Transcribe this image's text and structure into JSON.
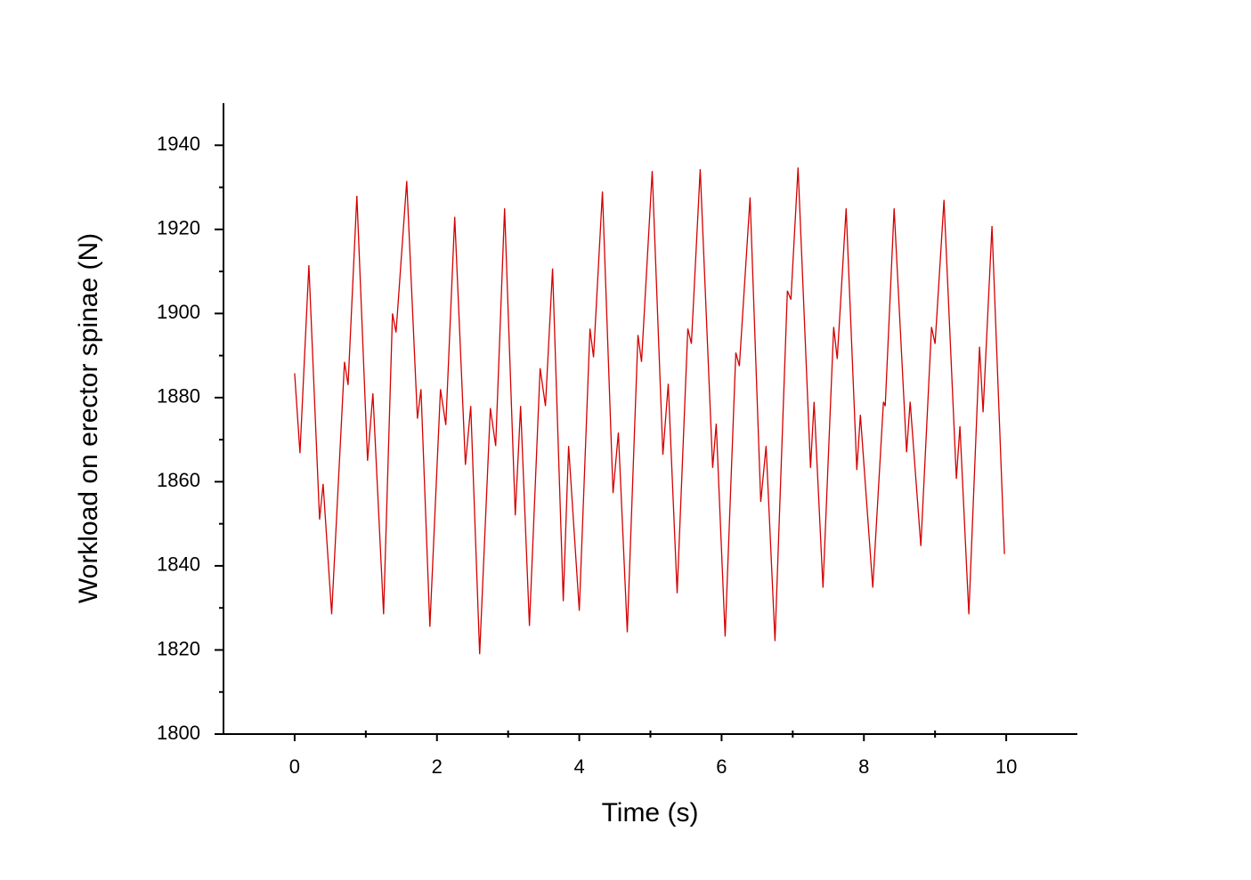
{
  "chart_data": {
    "type": "line",
    "x_label": "Time (s)",
    "y_label": "Workload on erector spinae (N)",
    "xlim": [
      -1,
      11
    ],
    "ylim": [
      1800,
      1950
    ],
    "xticks": [
      0,
      2,
      4,
      6,
      8,
      10
    ],
    "yticks": [
      1800,
      1820,
      1840,
      1860,
      1880,
      1900,
      1920,
      1940
    ],
    "grid": false,
    "series": [
      {
        "color": "#d40000",
        "x": [
          0,
          0.075,
          0.2,
          0.35,
          0.4,
          0.52,
          0.7,
          0.75,
          0.875,
          1.025,
          1.1,
          1.25,
          1.375,
          1.425,
          1.575,
          1.725,
          1.775,
          1.9,
          2.05,
          2.125,
          2.25,
          2.4,
          2.475,
          2.6,
          2.75,
          2.825,
          2.95,
          3.1,
          3.175,
          3.3,
          3.45,
          3.525,
          3.625,
          3.775,
          3.85,
          4.0,
          4.15,
          4.2,
          4.325,
          4.475,
          4.55,
          4.675,
          4.825,
          4.875,
          5.025,
          5.175,
          5.25,
          5.375,
          5.525,
          5.575,
          5.7,
          5.875,
          5.925,
          6.05,
          6.2,
          6.25,
          6.4,
          6.55,
          6.625,
          6.75,
          6.925,
          6.975,
          7.075,
          7.25,
          7.3,
          7.425,
          7.575,
          7.625,
          7.75,
          7.9,
          7.95,
          8.125,
          8.275,
          8.3,
          8.425,
          8.6,
          8.65,
          8.8,
          8.95,
          9.0,
          9.125,
          9.3,
          9.35,
          9.475,
          9.625,
          9.675,
          9.8,
          9.975
        ],
        "values": [
          1885.8,
          1866.8,
          1911.5,
          1851,
          1859.5,
          1828.5,
          1888.5,
          1883,
          1928,
          1865,
          1881,
          1828.5,
          1900,
          1895.5,
          1931.5,
          1875,
          1882,
          1825.5,
          1882,
          1873.5,
          1923,
          1864,
          1878,
          1819,
          1877.5,
          1868.5,
          1925,
          1852,
          1878,
          1825.7,
          1887,
          1878,
          1910.7,
          1831.6,
          1868.5,
          1829.3,
          1896.4,
          1889.6,
          1929,
          1857.3,
          1871.7,
          1824.2,
          1894.9,
          1888.5,
          1933.9,
          1866.4,
          1883.3,
          1833.5,
          1896.4,
          1892.8,
          1934.3,
          1863.3,
          1873.8,
          1823.2,
          1890.7,
          1887.5,
          1927.6,
          1855.2,
          1868.5,
          1822.1,
          1905.4,
          1903.3,
          1934.7,
          1863.3,
          1879,
          1834.8,
          1896.8,
          1889.2,
          1925,
          1862.8,
          1875.9,
          1834.8,
          1879,
          1878,
          1925,
          1867,
          1879,
          1844.7,
          1896.8,
          1892.8,
          1927,
          1860.7,
          1873.2,
          1828.5,
          1892.1,
          1876.5,
          1920.8,
          1842.8
        ]
      }
    ]
  }
}
